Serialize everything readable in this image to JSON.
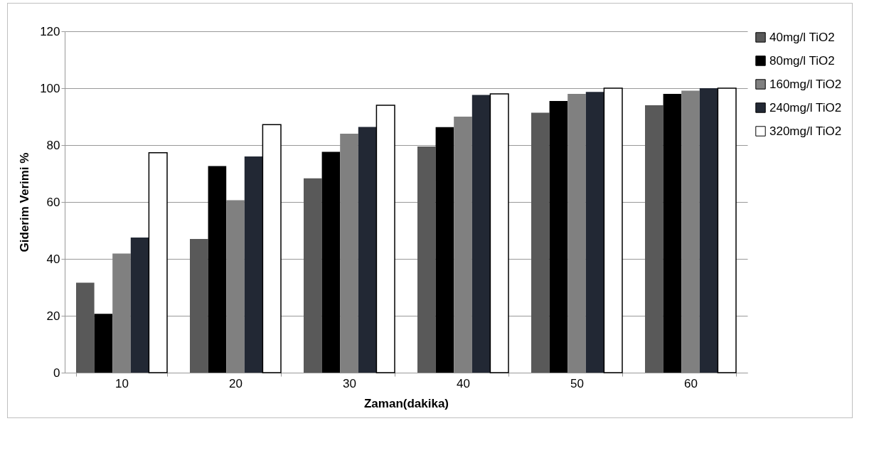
{
  "chart_data": {
    "type": "bar",
    "xlabel": "Zaman(dakika)",
    "ylabel": "Giderim Verimi %",
    "categories": [
      "10",
      "20",
      "30",
      "40",
      "50",
      "60"
    ],
    "series": [
      {
        "name": "40mg/l TiO2",
        "color": "#595959",
        "values": [
          31.6,
          47.0,
          68.3,
          79.5,
          91.4,
          94.0
        ]
      },
      {
        "name": "80mg/l TiO2",
        "color": "#000000",
        "values": [
          20.7,
          72.6,
          77.6,
          86.3,
          95.5,
          98.0
        ]
      },
      {
        "name": "160mg/l TiO2",
        "color": "#808080",
        "values": [
          41.9,
          60.6,
          84.0,
          90.0,
          98.0,
          99.1
        ]
      },
      {
        "name": "240mg/l TiO2",
        "color": "#222834",
        "values": [
          47.5,
          76.0,
          86.4,
          97.6,
          98.7,
          100
        ]
      },
      {
        "name": "320mg/l TiO2",
        "color": "#ffffff",
        "values": [
          77.3,
          87.2,
          94.0,
          98.0,
          100,
          100
        ]
      }
    ],
    "ylim": [
      0,
      120
    ],
    "yticks": [
      0,
      20,
      40,
      60,
      80,
      100,
      120
    ],
    "grid": "y",
    "legend": "right"
  }
}
